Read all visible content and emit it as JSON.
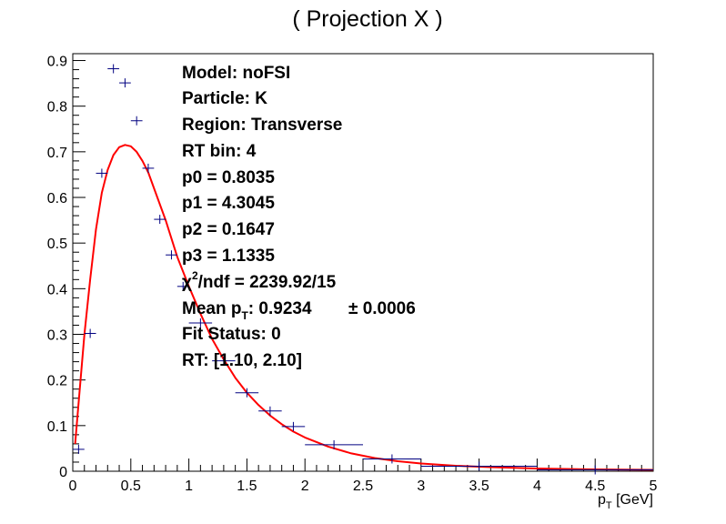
{
  "chart_data": {
    "type": "scatter",
    "title": "( Projection X )",
    "xlabel": "p_T [GeV]",
    "xlabel_main": "p",
    "xlabel_sub": "T",
    "xlabel_unit": " [GeV]",
    "ylabel": "",
    "xlim": [
      0,
      5
    ],
    "ylim": [
      0,
      0.915
    ],
    "grid": false,
    "x_ticks": [
      "0",
      "0.5",
      "1",
      "1.5",
      "2",
      "2.5",
      "3",
      "3.5",
      "4",
      "4.5",
      "5"
    ],
    "y_ticks": [
      "0",
      "0.1",
      "0.2",
      "0.3",
      "0.4",
      "0.5",
      "0.6",
      "0.7",
      "0.8",
      "0.9"
    ],
    "series": [
      {
        "kind": "points-with-errors",
        "color": "#000080",
        "points": [
          {
            "x": 0.05,
            "xlo": 0.0,
            "xhi": 0.1,
            "y": 0.048
          },
          {
            "x": 0.15,
            "xlo": 0.1,
            "xhi": 0.2,
            "y": 0.302
          },
          {
            "x": 0.25,
            "xlo": 0.2,
            "xhi": 0.3,
            "y": 0.653
          },
          {
            "x": 0.35,
            "xlo": 0.3,
            "xhi": 0.4,
            "y": 0.882
          },
          {
            "x": 0.45,
            "xlo": 0.4,
            "xhi": 0.5,
            "y": 0.851
          },
          {
            "x": 0.55,
            "xlo": 0.5,
            "xhi": 0.6,
            "y": 0.768
          },
          {
            "x": 0.65,
            "xlo": 0.6,
            "xhi": 0.7,
            "y": 0.664
          },
          {
            "x": 0.75,
            "xlo": 0.7,
            "xhi": 0.8,
            "y": 0.552
          },
          {
            "x": 0.85,
            "xlo": 0.8,
            "xhi": 0.9,
            "y": 0.474
          },
          {
            "x": 0.95,
            "xlo": 0.9,
            "xhi": 1.0,
            "y": 0.405
          },
          {
            "x": 1.1,
            "xlo": 1.0,
            "xhi": 1.2,
            "y": 0.325
          },
          {
            "x": 1.3,
            "xlo": 1.2,
            "xhi": 1.4,
            "y": 0.242
          },
          {
            "x": 1.5,
            "xlo": 1.4,
            "xhi": 1.6,
            "y": 0.172
          },
          {
            "x": 1.7,
            "xlo": 1.6,
            "xhi": 1.8,
            "y": 0.132
          },
          {
            "x": 1.9,
            "xlo": 1.8,
            "xhi": 2.0,
            "y": 0.098
          },
          {
            "x": 2.25,
            "xlo": 2.0,
            "xhi": 2.5,
            "y": 0.058
          },
          {
            "x": 2.75,
            "xlo": 2.5,
            "xhi": 3.0,
            "y": 0.027
          },
          {
            "x": 3.5,
            "xlo": 3.0,
            "xhi": 4.0,
            "y": 0.011
          },
          {
            "x": 4.5,
            "xlo": 4.0,
            "xhi": 5.0,
            "y": 0.003
          }
        ]
      },
      {
        "kind": "fit-curve",
        "color": "#ff0000",
        "points": [
          {
            "x": 0.02,
            "y": 0.06
          },
          {
            "x": 0.05,
            "y": 0.15
          },
          {
            "x": 0.1,
            "y": 0.3
          },
          {
            "x": 0.15,
            "y": 0.42
          },
          {
            "x": 0.2,
            "y": 0.53
          },
          {
            "x": 0.25,
            "y": 0.61
          },
          {
            "x": 0.3,
            "y": 0.66
          },
          {
            "x": 0.35,
            "y": 0.693
          },
          {
            "x": 0.4,
            "y": 0.71
          },
          {
            "x": 0.45,
            "y": 0.715
          },
          {
            "x": 0.5,
            "y": 0.712
          },
          {
            "x": 0.55,
            "y": 0.7
          },
          {
            "x": 0.6,
            "y": 0.68
          },
          {
            "x": 0.65,
            "y": 0.655
          },
          {
            "x": 0.7,
            "y": 0.62
          },
          {
            "x": 0.8,
            "y": 0.55
          },
          {
            "x": 0.9,
            "y": 0.47
          },
          {
            "x": 1.0,
            "y": 0.405
          },
          {
            "x": 1.1,
            "y": 0.345
          },
          {
            "x": 1.2,
            "y": 0.29
          },
          {
            "x": 1.3,
            "y": 0.245
          },
          {
            "x": 1.4,
            "y": 0.205
          },
          {
            "x": 1.5,
            "y": 0.172
          },
          {
            "x": 1.6,
            "y": 0.145
          },
          {
            "x": 1.7,
            "y": 0.122
          },
          {
            "x": 1.8,
            "y": 0.103
          },
          {
            "x": 1.9,
            "y": 0.087
          },
          {
            "x": 2.0,
            "y": 0.074
          },
          {
            "x": 2.2,
            "y": 0.054
          },
          {
            "x": 2.4,
            "y": 0.039
          },
          {
            "x": 2.6,
            "y": 0.029
          },
          {
            "x": 2.8,
            "y": 0.022
          },
          {
            "x": 3.0,
            "y": 0.017
          },
          {
            "x": 3.3,
            "y": 0.012
          },
          {
            "x": 3.6,
            "y": 0.009
          },
          {
            "x": 4.0,
            "y": 0.006
          },
          {
            "x": 4.5,
            "y": 0.004
          },
          {
            "x": 5.0,
            "y": 0.003
          }
        ]
      }
    ],
    "annotations": {
      "model": "Model: noFSI",
      "particle": "Particle: K",
      "region": "Region: Transverse",
      "rt_bin": "RT bin: 4",
      "p0": "p0 = 0.8035",
      "p1": "p1 = 4.3045",
      "p2": "p2 = 0.1647",
      "p3": "p3 = 1.1335",
      "chi2_pre": "χ",
      "chi2_sup": "2",
      "chi2_post": "/ndf = 2239.92/15",
      "mean_pre": "Mean p",
      "mean_sub": "T",
      "mean_val": ": 0.9234",
      "mean_pm": "± 0.0006",
      "fit_status": "Fit Status: 0",
      "rt_range": "RT: [1.10, 2.10]"
    }
  }
}
